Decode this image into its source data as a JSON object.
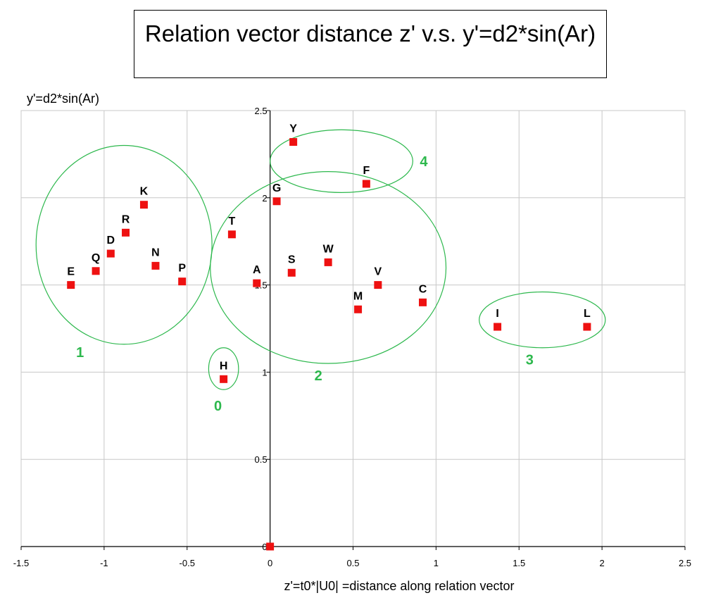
{
  "chart_data": {
    "type": "scatter",
    "title": "Relation vector distance z' v.s. y'=d2*sin(Ar)",
    "xlabel": "z'=t0*|U0| =distance along relation vector",
    "ylabel": "y'=d2*sin(Ar)",
    "xlim": [
      -1.5,
      2.5
    ],
    "ylim": [
      0,
      2.5
    ],
    "x_ticks": [
      "-1.5",
      "-1",
      "-0.5",
      "0",
      "0.5",
      "1",
      "1.5",
      "2",
      "2.5"
    ],
    "y_ticks": [
      "0",
      "0.5",
      "1",
      "1.5",
      "2",
      "2.5"
    ],
    "grid": true,
    "marker_color": "#ee1111",
    "group_color": "#2db84d",
    "points": [
      {
        "label": "E",
        "x": -1.2,
        "y": 1.5
      },
      {
        "label": "Q",
        "x": -1.05,
        "y": 1.58
      },
      {
        "label": "D",
        "x": -0.96,
        "y": 1.68
      },
      {
        "label": "R",
        "x": -0.87,
        "y": 1.8
      },
      {
        "label": "K",
        "x": -0.76,
        "y": 1.96
      },
      {
        "label": "N",
        "x": -0.69,
        "y": 1.61
      },
      {
        "label": "P",
        "x": -0.53,
        "y": 1.52
      },
      {
        "label": "T",
        "x": -0.23,
        "y": 1.79
      },
      {
        "label": "A",
        "x": -0.08,
        "y": 1.51
      },
      {
        "label": "G",
        "x": 0.04,
        "y": 1.98
      },
      {
        "label": "S",
        "x": 0.13,
        "y": 1.57
      },
      {
        "label": "W",
        "x": 0.35,
        "y": 1.63
      },
      {
        "label": "M",
        "x": 0.53,
        "y": 1.36
      },
      {
        "label": "V",
        "x": 0.65,
        "y": 1.5
      },
      {
        "label": "C",
        "x": 0.92,
        "y": 1.4
      },
      {
        "label": "Y",
        "x": 0.14,
        "y": 2.32
      },
      {
        "label": "F",
        "x": 0.58,
        "y": 2.08
      },
      {
        "label": "I",
        "x": 1.37,
        "y": 1.26
      },
      {
        "label": "L",
        "x": 1.91,
        "y": 1.26
      },
      {
        "label": "H",
        "x": -0.28,
        "y": 0.96
      },
      {
        "label": "",
        "x": 0.0,
        "y": 0.0
      }
    ],
    "groups": [
      {
        "label": "0",
        "cx": -0.28,
        "cy": 1.02,
        "rx": 0.09,
        "ry": 0.12
      },
      {
        "label": "1",
        "cx": -0.88,
        "cy": 1.73,
        "rx": 0.53,
        "ry": 0.57
      },
      {
        "label": "2",
        "cx": 0.35,
        "cy": 1.6,
        "rx": 0.71,
        "ry": 0.55
      },
      {
        "label": "3",
        "cx": 1.64,
        "cy": 1.3,
        "rx": 0.38,
        "ry": 0.16
      },
      {
        "label": "4",
        "cx": 0.43,
        "cy": 2.21,
        "rx": 0.43,
        "ry": 0.18
      }
    ]
  }
}
